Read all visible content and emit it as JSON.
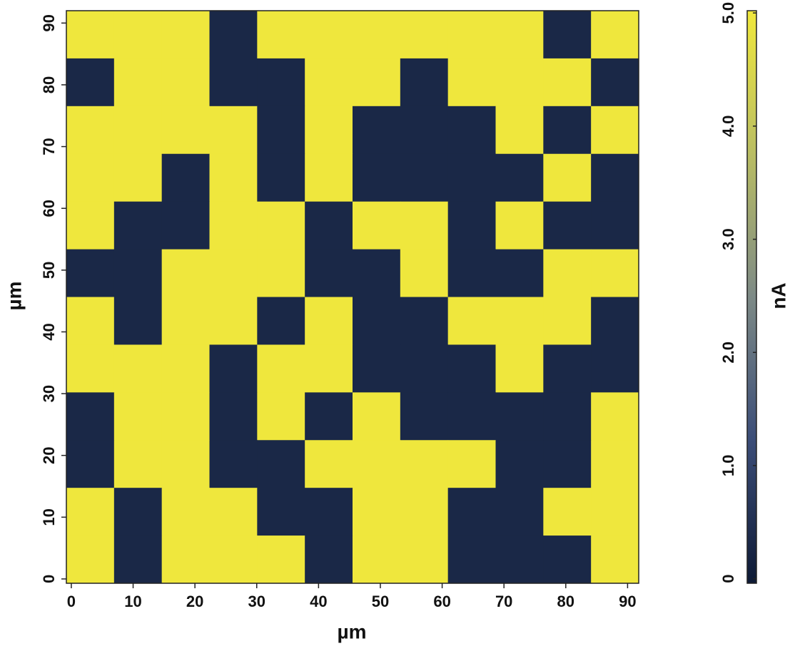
{
  "chart_data": {
    "type": "heatmap",
    "xlabel": "µm",
    "ylabel": "µm",
    "colorbar_label": "nA",
    "xlim": [
      -0.8,
      91.8
    ],
    "ylim": [
      -0.7,
      92
    ],
    "xticks": [
      0,
      10,
      20,
      30,
      40,
      50,
      60,
      70,
      80,
      90
    ],
    "yticks": [
      0,
      10,
      20,
      30,
      40,
      50,
      60,
      70,
      80,
      90
    ],
    "clim": [
      -0.04,
      5.02
    ],
    "cticks": [
      0,
      {
        "value": 1,
        "label": "1.0"
      },
      {
        "value": 2,
        "label": "2.0"
      },
      {
        "value": 3,
        "label": "3.0"
      },
      {
        "value": 4,
        "label": "4.0"
      },
      {
        "value": 5,
        "label": "5.0"
      }
    ],
    "colormap": [
      "#0e1a35",
      "#3b4d78",
      "#7d8a86",
      "#b9bd63",
      "#f0e83c"
    ],
    "z": [
      [
        5,
        5,
        5,
        0.3,
        5,
        5,
        5,
        5,
        5,
        5,
        0.3,
        5
      ],
      [
        0.3,
        5,
        5,
        0.3,
        0.3,
        5,
        5,
        0.3,
        5,
        5,
        5,
        0.3
      ],
      [
        5,
        5,
        5,
        5,
        0.3,
        5,
        0.3,
        0.3,
        0.3,
        5,
        0.3,
        5
      ],
      [
        5,
        5,
        0.3,
        5,
        0.3,
        5,
        0.3,
        0.3,
        0.3,
        0.3,
        5,
        0.3
      ],
      [
        5,
        0.3,
        0.3,
        5,
        5,
        0.3,
        5,
        5,
        0.3,
        5,
        0.3,
        0.3
      ],
      [
        0.3,
        0.3,
        5,
        5,
        5,
        0.3,
        0.3,
        5,
        0.3,
        0.3,
        5,
        5
      ],
      [
        5,
        0.3,
        5,
        5,
        0.3,
        5,
        0.3,
        0.3,
        5,
        5,
        5,
        0.3
      ],
      [
        5,
        5,
        5,
        0.3,
        5,
        5,
        0.3,
        0.3,
        0.3,
        5,
        0.3,
        0.3
      ],
      [
        0.3,
        5,
        5,
        0.3,
        5,
        0.3,
        5,
        0.3,
        0.3,
        0.3,
        0.3,
        5
      ],
      [
        0.3,
        5,
        5,
        0.3,
        0.3,
        5,
        5,
        5,
        5,
        0.3,
        0.3,
        5
      ],
      [
        5,
        0.3,
        5,
        5,
        0.3,
        0.3,
        5,
        5,
        0.3,
        0.3,
        5,
        5
      ],
      [
        5,
        0.3,
        5,
        5,
        5,
        0.3,
        5,
        5,
        0.3,
        0.3,
        0.3,
        5
      ]
    ]
  }
}
